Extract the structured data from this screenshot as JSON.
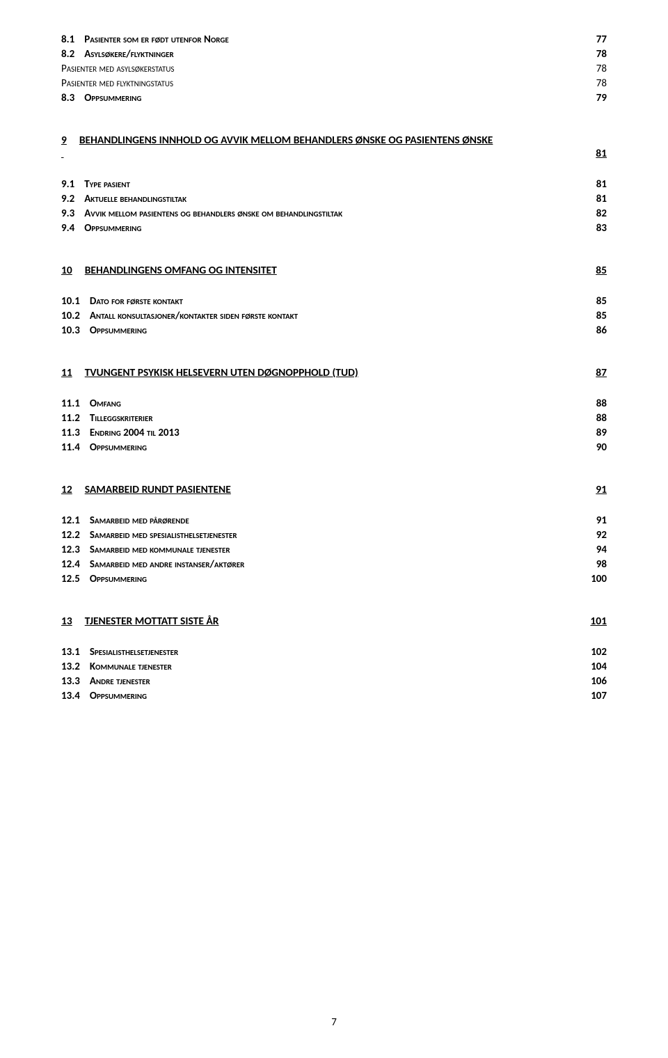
{
  "entries": [
    {
      "type": "sub",
      "num": "8.1",
      "label": "Pasienter som er født utenfor Norge",
      "page": "77"
    },
    {
      "type": "sub",
      "num": "8.2",
      "label": "Asylsøkere/flyktninger",
      "page": "78"
    },
    {
      "type": "indent",
      "label": "Pasienter med asylsøkerstatus",
      "page": "78"
    },
    {
      "type": "indent",
      "label": "Pasienter med flyktningstatus",
      "page": "78"
    },
    {
      "type": "sub",
      "num": "8.3",
      "label": "Oppsummering",
      "page": "79"
    },
    {
      "type": "section-multiline",
      "num": "9",
      "line1": "BEHANDLINGENS INNHOLD OG AVVIK MELLOM BEHANDLERS ØNSKE OG PASIENTENS ØNSKE",
      "page": "81"
    },
    {
      "type": "sub",
      "num": "9.1",
      "label": "Type pasient",
      "page": "81"
    },
    {
      "type": "sub",
      "num": "9.2",
      "label": "Aktuelle behandlingstiltak",
      "page": "81"
    },
    {
      "type": "sub",
      "num": "9.3",
      "label": "Avvik mellom pasientens og behandlers ønske om behandlingstiltak",
      "page": "82"
    },
    {
      "type": "sub",
      "num": "9.4",
      "label": "Oppsummering",
      "page": "83"
    },
    {
      "type": "section",
      "num": "10",
      "label": "BEHANDLINGENS OMFANG OG INTENSITET",
      "page": "85"
    },
    {
      "type": "sub",
      "num": "10.1",
      "label": "Dato for første kontakt",
      "page": "85"
    },
    {
      "type": "sub",
      "num": "10.2",
      "label": "Antall konsultasjoner/kontakter siden første kontakt",
      "page": "85"
    },
    {
      "type": "sub",
      "num": "10.3",
      "label": "Oppsummering",
      "page": "86"
    },
    {
      "type": "section",
      "num": "11",
      "label": "TVUNGENT PSYKISK HELSEVERN UTEN DØGNOPPHOLD (TUD)",
      "page": "87"
    },
    {
      "type": "sub",
      "num": "11.1",
      "label": "Omfang",
      "page": "88"
    },
    {
      "type": "sub",
      "num": "11.2",
      "label": "Tilleggskriterier",
      "page": "88"
    },
    {
      "type": "sub",
      "num": "11.3",
      "label": "Endring 2004 til 2013",
      "page": "89"
    },
    {
      "type": "sub",
      "num": "11.4",
      "label": "Oppsummering",
      "page": "90"
    },
    {
      "type": "section",
      "num": "12",
      "label": "SAMARBEID RUNDT PASIENTENE",
      "page": "91"
    },
    {
      "type": "sub",
      "num": "12.1",
      "label": "Samarbeid med pårørende",
      "page": "91"
    },
    {
      "type": "sub",
      "num": "12.2",
      "label": "Samarbeid med spesialisthelsetjenester",
      "page": "92"
    },
    {
      "type": "sub",
      "num": "12.3",
      "label": "Samarbeid med kommunale tjenester",
      "page": "94"
    },
    {
      "type": "sub",
      "num": "12.4",
      "label": "Samarbeid med andre instanser/aktører",
      "page": "98"
    },
    {
      "type": "sub",
      "num": "12.5",
      "label": "Oppsummering",
      "page": "100"
    },
    {
      "type": "section",
      "num": "13",
      "label": "TJENESTER MOTTATT SISTE ÅR",
      "page": "101"
    },
    {
      "type": "sub",
      "num": "13.1",
      "label": "Spesialisthelsetjenester",
      "page": "102"
    },
    {
      "type": "sub",
      "num": "13.2",
      "label": "Kommunale tjenester",
      "page": "104"
    },
    {
      "type": "sub",
      "num": "13.3",
      "label": "Andre tjenester",
      "page": "106"
    },
    {
      "type": "sub",
      "num": "13.4",
      "label": "Oppsummering",
      "page": "107"
    }
  ],
  "footer_page": "7"
}
